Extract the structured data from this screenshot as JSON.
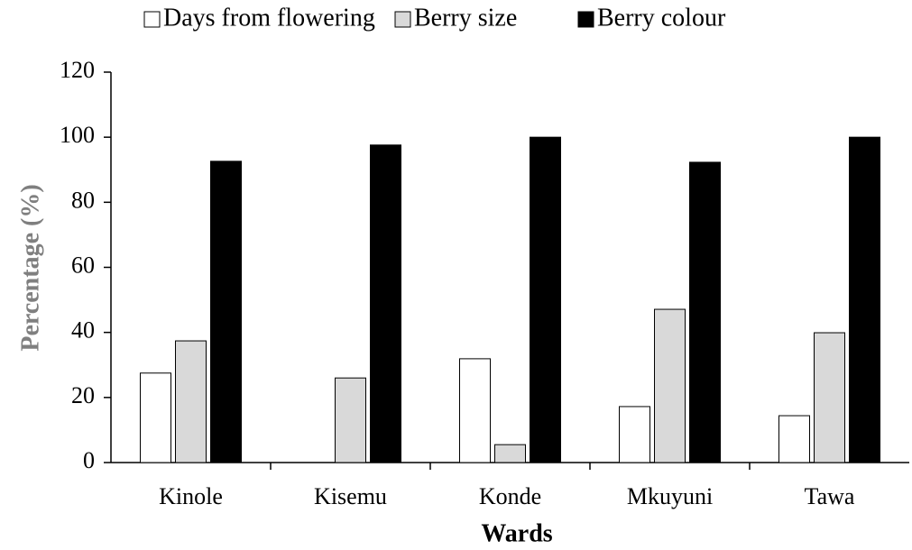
{
  "chart_data": {
    "type": "bar",
    "xlabel": "Wards",
    "ylabel": "Percentage (%)",
    "categories": [
      "Kinole",
      "Kisemu",
      "Konde",
      "Mkuyuni",
      "Tawa"
    ],
    "series": [
      {
        "name": "Days from flowering",
        "color": "#ffffff",
        "values": [
          27.5,
          0,
          31.9,
          17.2,
          14.4
        ]
      },
      {
        "name": "Berry size",
        "color": "#d9d9d9",
        "values": [
          37.4,
          26,
          5.5,
          47.1,
          39.9
        ]
      },
      {
        "name": "Berry colour",
        "color": "#000000",
        "values": [
          92.6,
          97.6,
          100,
          92.3,
          100
        ]
      }
    ],
    "ylim": [
      0,
      120
    ],
    "yticks": [
      0,
      20,
      40,
      60,
      80,
      100,
      120
    ],
    "legend": "top"
  }
}
